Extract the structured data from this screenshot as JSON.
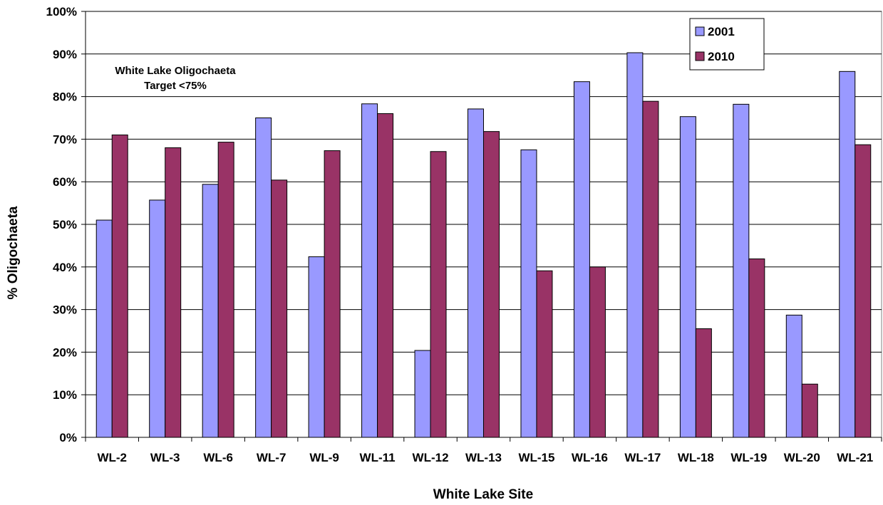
{
  "chart_data": {
    "type": "bar",
    "title": "",
    "xlabel": "White Lake Site",
    "ylabel": "% Oligochaeta",
    "ylim": [
      0,
      100
    ],
    "yticks": [
      "0%",
      "10%",
      "20%",
      "30%",
      "40%",
      "50%",
      "60%",
      "70%",
      "80%",
      "90%",
      "100%"
    ],
    "grid": true,
    "legend_position": "top-right",
    "categories": [
      "WL-2",
      "WL-3",
      "WL-6",
      "WL-7",
      "WL-9",
      "WL-11",
      "WL-12",
      "WL-13",
      "WL-15",
      "WL-16",
      "WL-17",
      "WL-18",
      "WL-19",
      "WL-20",
      "WL-21"
    ],
    "series": [
      {
        "name": "2001",
        "color": "#9999ff",
        "values": [
          51.0,
          55.7,
          59.4,
          75.0,
          42.4,
          78.3,
          20.4,
          77.1,
          67.5,
          83.5,
          90.3,
          75.3,
          78.2,
          28.7,
          85.9
        ]
      },
      {
        "name": "2010",
        "color": "#993366",
        "values": [
          71.0,
          68.0,
          69.3,
          60.4,
          67.3,
          76.0,
          67.1,
          71.8,
          39.1,
          40.0,
          78.9,
          25.5,
          41.9,
          12.5,
          68.7
        ]
      }
    ],
    "annotation": {
      "line1": "White Lake Oligochaeta",
      "line2": "Target <75%"
    }
  }
}
